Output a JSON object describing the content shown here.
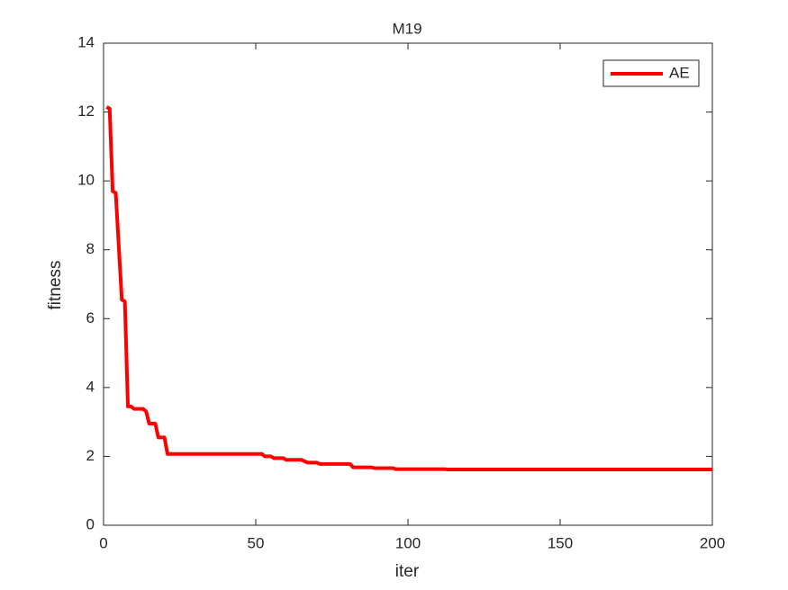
{
  "chart_data": {
    "type": "line",
    "title": "M19",
    "xlabel": "iter",
    "ylabel": "fitness",
    "x": [
      1,
      2,
      3,
      4,
      6,
      7,
      8,
      9,
      10,
      13,
      14,
      15,
      17,
      18,
      20,
      21,
      52,
      53,
      55,
      56,
      59,
      60,
      65,
      67,
      70,
      71,
      81,
      82,
      88,
      89,
      95,
      96,
      112,
      113,
      200
    ],
    "series": [
      {
        "name": "AE",
        "color": "#ff0000",
        "values": [
          12.15,
          12.1,
          9.7,
          9.65,
          6.55,
          6.5,
          3.45,
          3.45,
          3.38,
          3.38,
          3.3,
          2.95,
          2.95,
          2.55,
          2.55,
          2.07,
          2.07,
          2.0,
          2.0,
          1.95,
          1.95,
          1.9,
          1.9,
          1.82,
          1.82,
          1.78,
          1.78,
          1.68,
          1.68,
          1.66,
          1.66,
          1.63,
          1.63,
          1.62,
          1.62
        ]
      }
    ],
    "xlim": [
      0,
      200
    ],
    "xticks": [
      0,
      50,
      100,
      150,
      200
    ],
    "ylim": [
      0,
      14
    ],
    "yticks": [
      0,
      2,
      4,
      6,
      8,
      10,
      12,
      14
    ],
    "legend": "top-right"
  }
}
